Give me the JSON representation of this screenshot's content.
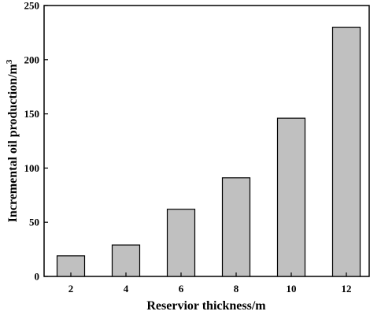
{
  "chart_data": {
    "type": "bar",
    "categories": [
      "2",
      "4",
      "6",
      "8",
      "10",
      "12"
    ],
    "values": [
      19,
      29,
      62,
      91,
      146,
      230
    ],
    "title": "",
    "xlabel": "Reservior thickness/m",
    "ylabel": "Incremental oil production/m",
    "ylabel_superscript": "3",
    "ylim": [
      0,
      250
    ],
    "yticks": [
      "0",
      "50",
      "100",
      "150",
      "200",
      "250"
    ],
    "grid": false,
    "bar_color": "#c0c0c0",
    "edge_color": "#000000"
  }
}
